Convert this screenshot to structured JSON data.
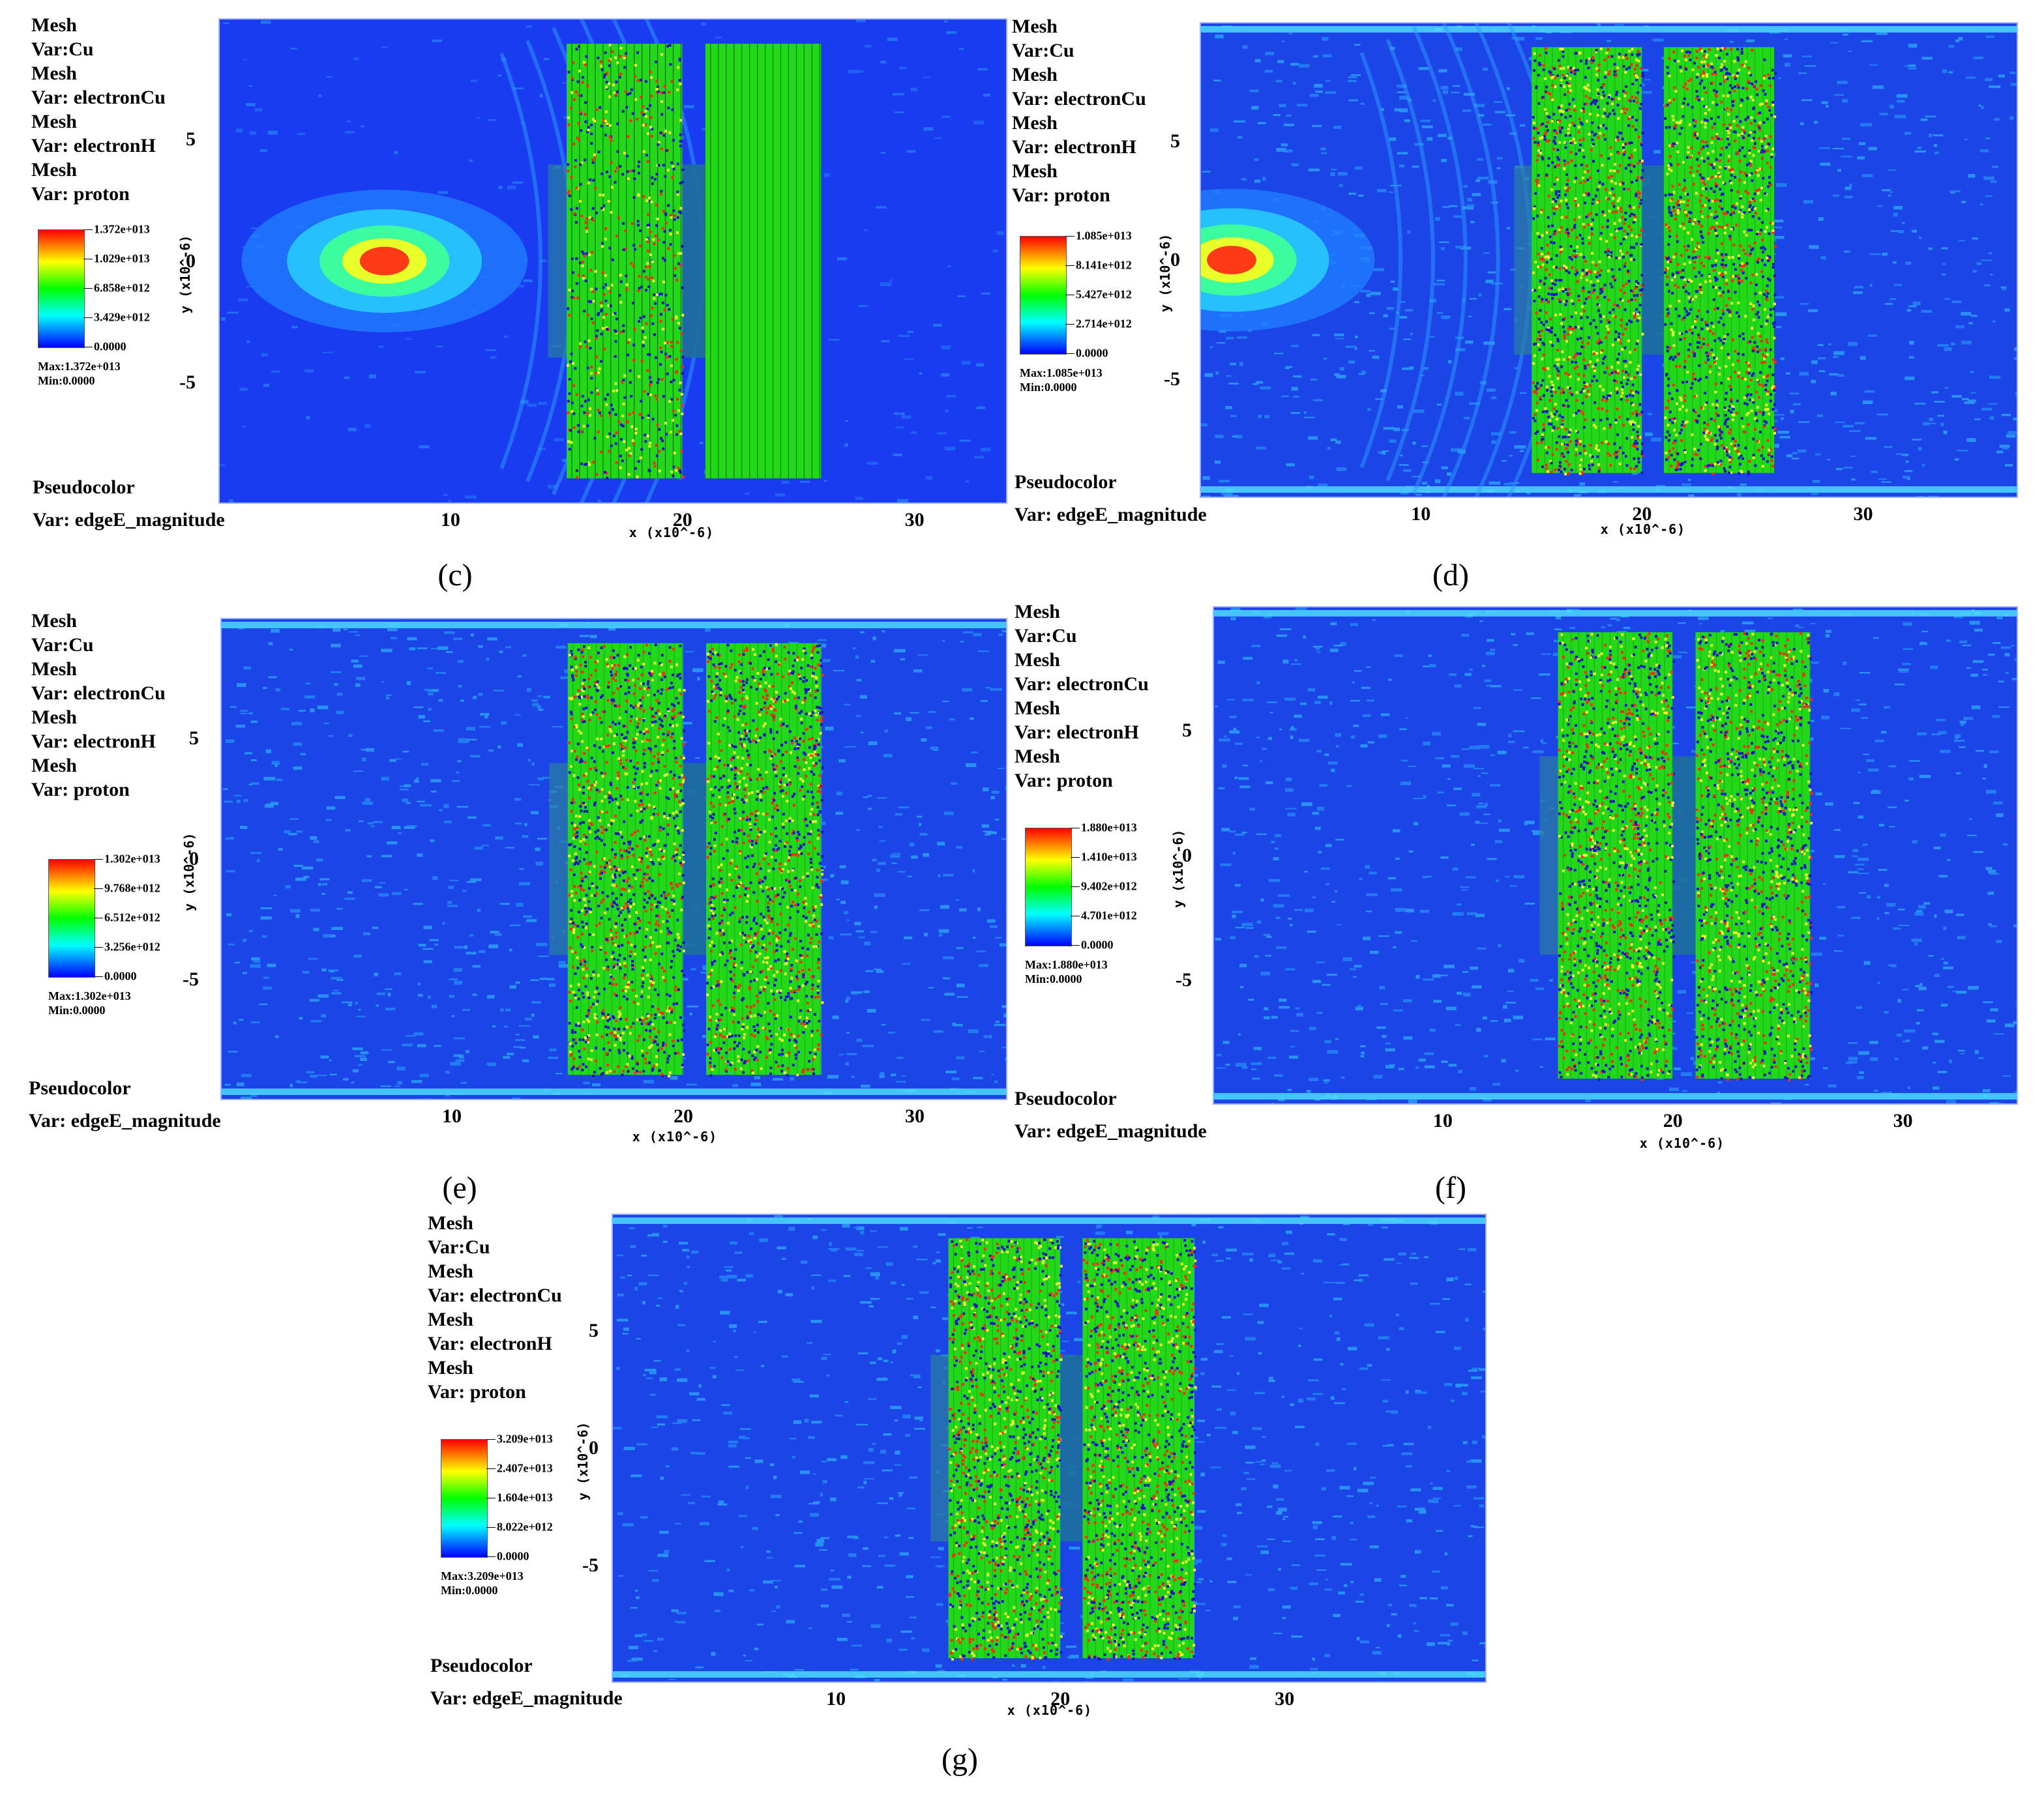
{
  "common": {
    "info_lines": [
      "Mesh",
      "Var:Cu",
      "Mesh",
      "Var: electronCu",
      "Mesh",
      "Var: electronH",
      "Mesh",
      "Var: proton"
    ],
    "plot_type": "Pseudocolor",
    "plot_var": "Var: edgeE_magnitude",
    "xlabel": "x  (x10^-6)",
    "ylabel": "y  (x10^-6)",
    "xticks": [
      "10",
      "20",
      "30"
    ],
    "yticks": [
      "5",
      "0",
      "-5"
    ]
  },
  "chart_data": [
    {
      "type": "heatmap",
      "caption": "(c)",
      "variable": "edgeE_magnitude",
      "colorbar_ticks": [
        "1.372e+013",
        "1.029e+013",
        "6.858e+012",
        "3.429e+012",
        "0.0000"
      ],
      "max": "Max:1.372e+013",
      "min": "Min:0.0000",
      "xlim": [
        0,
        34
      ],
      "ylim": [
        -10,
        10
      ],
      "targets": [
        {
          "x": [
            15,
            20
          ],
          "y": [
            -9,
            9
          ]
        },
        {
          "x": [
            21,
            26
          ],
          "y": [
            -9,
            9
          ]
        }
      ]
    },
    {
      "type": "heatmap",
      "caption": "(d)",
      "variable": "edgeE_magnitude",
      "colorbar_ticks": [
        "1.085e+013",
        "8.141e+012",
        "5.427e+012",
        "2.714e+012",
        "0.0000"
      ],
      "max": "Max:1.085e+013",
      "min": "Min:0.0000",
      "xlim": [
        0,
        37
      ],
      "ylim": [
        -10,
        10
      ],
      "targets": [
        {
          "x": [
            15,
            20
          ],
          "y": [
            -9,
            9
          ]
        },
        {
          "x": [
            21,
            26
          ],
          "y": [
            -9,
            9
          ]
        }
      ]
    },
    {
      "type": "heatmap",
      "caption": "(e)",
      "variable": "edgeE_magnitude",
      "colorbar_ticks": [
        "1.302e+013",
        "9.768e+012",
        "6.512e+012",
        "3.256e+012",
        "0.0000"
      ],
      "max": "Max:1.302e+013",
      "min": "Min:0.0000",
      "xlim": [
        0,
        34
      ],
      "ylim": [
        -10,
        10
      ],
      "targets": [
        {
          "x": [
            15,
            20
          ],
          "y": [
            -9,
            9
          ]
        },
        {
          "x": [
            21,
            26
          ],
          "y": [
            -9,
            9
          ]
        }
      ]
    },
    {
      "type": "heatmap",
      "caption": "(f)",
      "variable": "edgeE_magnitude",
      "colorbar_ticks": [
        "1.880e+013",
        "1.410e+013",
        "9.402e+012",
        "4.701e+012",
        "0.0000"
      ],
      "max": "Max:1.880e+013",
      "min": "Min:0.0000",
      "xlim": [
        0,
        35
      ],
      "ylim": [
        -10,
        10
      ],
      "targets": [
        {
          "x": [
            15,
            20
          ],
          "y": [
            -9,
            9
          ]
        },
        {
          "x": [
            21,
            26
          ],
          "y": [
            -9,
            9
          ]
        }
      ]
    },
    {
      "type": "heatmap",
      "caption": "(g)",
      "variable": "edgeE_magnitude",
      "colorbar_ticks": [
        "3.209e+013",
        "2.407e+013",
        "1.604e+013",
        "8.022e+012",
        "0.0000"
      ],
      "max": "Max:3.209e+013",
      "min": "Min:0.0000",
      "xlim": [
        0,
        39
      ],
      "ylim": [
        -10,
        10
      ],
      "targets": [
        {
          "x": [
            15,
            20
          ],
          "y": [
            -9,
            9
          ]
        },
        {
          "x": [
            21,
            26
          ],
          "y": [
            -9,
            9
          ]
        }
      ]
    }
  ]
}
